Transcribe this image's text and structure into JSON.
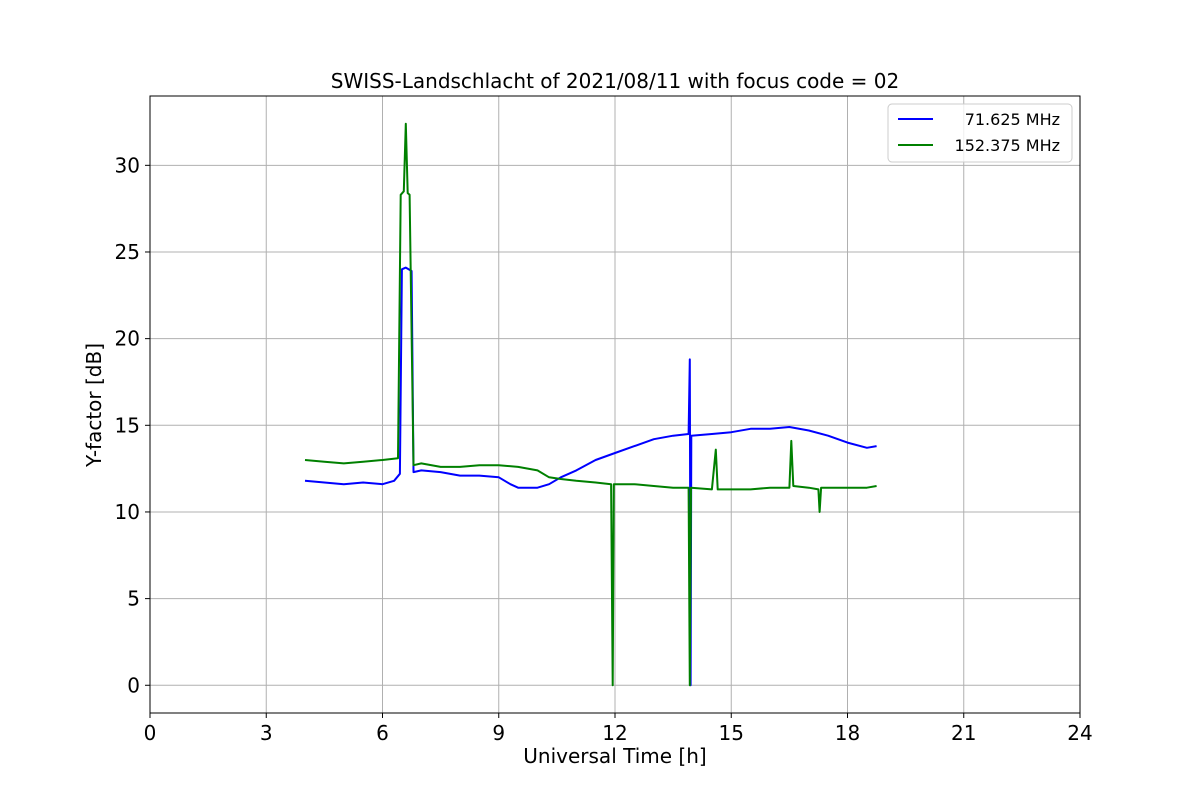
{
  "chart_data": {
    "type": "line",
    "title": "SWISS-Landschlacht of 2021/08/11 with focus code = 02",
    "xlabel": "Universal Time [h]",
    "ylabel": "Y-factor [dB]",
    "xlim": [
      0,
      24
    ],
    "ylim": [
      -1.6,
      34
    ],
    "xticks": [
      0,
      3,
      6,
      9,
      12,
      15,
      18,
      21,
      24
    ],
    "yticks": [
      0,
      5,
      10,
      15,
      20,
      25,
      30
    ],
    "grid": true,
    "legend_position": "top-right",
    "series": [
      {
        "name": "71.625 MHz",
        "color": "#0000ff",
        "points": [
          [
            4.0,
            11.8
          ],
          [
            4.5,
            11.7
          ],
          [
            5.0,
            11.6
          ],
          [
            5.5,
            11.7
          ],
          [
            6.0,
            11.6
          ],
          [
            6.3,
            11.8
          ],
          [
            6.45,
            12.2
          ],
          [
            6.5,
            24.0
          ],
          [
            6.6,
            24.1
          ],
          [
            6.75,
            23.9
          ],
          [
            6.8,
            12.3
          ],
          [
            7.0,
            12.4
          ],
          [
            7.5,
            12.3
          ],
          [
            8.0,
            12.1
          ],
          [
            8.5,
            12.1
          ],
          [
            9.0,
            12.0
          ],
          [
            9.3,
            11.6
          ],
          [
            9.5,
            11.4
          ],
          [
            10.0,
            11.4
          ],
          [
            10.3,
            11.6
          ],
          [
            10.6,
            12.0
          ],
          [
            11.0,
            12.4
          ],
          [
            11.5,
            13.0
          ],
          [
            12.0,
            13.4
          ],
          [
            12.5,
            13.8
          ],
          [
            13.0,
            14.2
          ],
          [
            13.5,
            14.4
          ],
          [
            13.9,
            14.5
          ],
          [
            13.93,
            18.8
          ],
          [
            13.95,
            0.0
          ],
          [
            13.97,
            14.4
          ],
          [
            14.5,
            14.5
          ],
          [
            15.0,
            14.6
          ],
          [
            15.5,
            14.8
          ],
          [
            16.0,
            14.8
          ],
          [
            16.5,
            14.9
          ],
          [
            17.0,
            14.7
          ],
          [
            17.5,
            14.4
          ],
          [
            18.0,
            14.0
          ],
          [
            18.5,
            13.7
          ],
          [
            18.75,
            13.8
          ]
        ]
      },
      {
        "name": "152.375 MHz",
        "color": "#008000",
        "points": [
          [
            4.0,
            13.0
          ],
          [
            4.5,
            12.9
          ],
          [
            5.0,
            12.8
          ],
          [
            5.5,
            12.9
          ],
          [
            6.0,
            13.0
          ],
          [
            6.4,
            13.1
          ],
          [
            6.47,
            28.3
          ],
          [
            6.55,
            28.5
          ],
          [
            6.6,
            32.4
          ],
          [
            6.65,
            28.4
          ],
          [
            6.7,
            28.3
          ],
          [
            6.8,
            12.7
          ],
          [
            7.0,
            12.8
          ],
          [
            7.5,
            12.6
          ],
          [
            8.0,
            12.6
          ],
          [
            8.5,
            12.7
          ],
          [
            9.0,
            12.7
          ],
          [
            9.5,
            12.6
          ],
          [
            10.0,
            12.4
          ],
          [
            10.3,
            12.0
          ],
          [
            10.6,
            11.9
          ],
          [
            11.0,
            11.8
          ],
          [
            11.5,
            11.7
          ],
          [
            11.9,
            11.6
          ],
          [
            11.94,
            0.0
          ],
          [
            11.97,
            11.6
          ],
          [
            12.5,
            11.6
          ],
          [
            13.0,
            11.5
          ],
          [
            13.5,
            11.4
          ],
          [
            13.9,
            11.4
          ],
          [
            13.93,
            0.0
          ],
          [
            13.96,
            11.4
          ],
          [
            14.5,
            11.3
          ],
          [
            14.6,
            13.6
          ],
          [
            14.65,
            11.3
          ],
          [
            15.0,
            11.3
          ],
          [
            15.5,
            11.3
          ],
          [
            16.0,
            11.4
          ],
          [
            16.5,
            11.4
          ],
          [
            16.55,
            14.1
          ],
          [
            16.6,
            11.5
          ],
          [
            17.0,
            11.4
          ],
          [
            17.25,
            11.3
          ],
          [
            17.28,
            10.0
          ],
          [
            17.32,
            11.4
          ],
          [
            17.5,
            11.4
          ],
          [
            18.0,
            11.4
          ],
          [
            18.5,
            11.4
          ],
          [
            18.75,
            11.5
          ]
        ]
      }
    ]
  }
}
